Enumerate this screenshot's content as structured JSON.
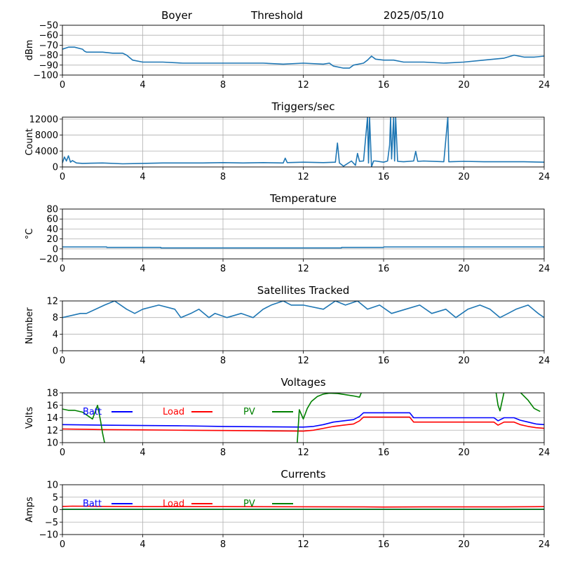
{
  "header": {
    "station": "Boyer",
    "mode": "Threshold",
    "date": "2025/05/10"
  },
  "colors": {
    "default_line": "#1f77b4",
    "batt": "#0000ff",
    "load": "#ff0000",
    "pv": "#008000",
    "grid": "#b0b0b0"
  },
  "chart_data": [
    {
      "type": "line",
      "title": "",
      "ylabel": "dBm",
      "xlim": [
        0,
        24
      ],
      "ylim": [
        -100,
        -50
      ],
      "xticks": [
        "0",
        "4",
        "8",
        "12",
        "16",
        "20",
        "24"
      ],
      "yticks": [
        "−100",
        "−90",
        "−80",
        "−70",
        "−60",
        "−50"
      ],
      "grid": true,
      "series": [
        {
          "color": "#1f77b4",
          "x": [
            0,
            0.3,
            0.6,
            1.0,
            1.1,
            1.2,
            2.0,
            2.5,
            3.0,
            3.2,
            3.5,
            4.0,
            4.5,
            5.0,
            6.0,
            7.0,
            8.0,
            9.0,
            10.0,
            11.0,
            12.0,
            13.0,
            13.3,
            13.5,
            14.0,
            14.3,
            14.5,
            15.0,
            15.2,
            15.4,
            15.6,
            16.0,
            16.5,
            17.0,
            18.0,
            19.0,
            20.0,
            21.0,
            22.0,
            22.5,
            23.0,
            23.5,
            24.0
          ],
          "y": [
            -74,
            -72,
            -72,
            -74,
            -76,
            -77,
            -77,
            -78,
            -78,
            -80,
            -85,
            -87,
            -87,
            -87,
            -88,
            -88,
            -88,
            -88,
            -88,
            -89,
            -88,
            -89,
            -88,
            -91,
            -93,
            -93,
            -90,
            -88,
            -85,
            -81,
            -84,
            -85,
            -85,
            -87,
            -87,
            -88,
            -87,
            -85,
            -83,
            -80,
            -82,
            -82,
            -81
          ]
        }
      ]
    },
    {
      "type": "line",
      "title": "Triggers/sec",
      "ylabel": "Count",
      "xlim": [
        0,
        24
      ],
      "ylim": [
        0,
        12500
      ],
      "xticks": [
        "0",
        "4",
        "8",
        "12",
        "16",
        "20",
        "24"
      ],
      "yticks": [
        "0",
        "4000",
        "8000",
        "12000"
      ],
      "grid": true,
      "series": [
        {
          "color": "#1f77b4",
          "x": [
            0,
            0.1,
            0.2,
            0.3,
            0.4,
            0.5,
            0.7,
            1.0,
            2.0,
            3.0,
            4.0,
            5.0,
            6.0,
            7.0,
            8.0,
            9.0,
            10.0,
            11.0,
            11.1,
            11.2,
            12.0,
            13.0,
            13.6,
            13.7,
            13.8,
            14.0,
            14.4,
            14.6,
            14.7,
            14.8,
            15.0,
            15.2,
            15.25,
            15.3,
            15.4,
            15.5,
            15.6,
            16.0,
            16.2,
            16.3,
            16.35,
            16.4,
            16.5,
            16.55,
            16.6,
            16.7,
            17.0,
            17.5,
            17.6,
            17.7,
            18.0,
            19.0,
            19.2,
            19.25,
            19.3,
            20.0,
            21.0,
            22.0,
            23.0,
            24.0
          ],
          "y": [
            1000,
            2500,
            1500,
            2800,
            1200,
            1600,
            1000,
            900,
            1000,
            800,
            900,
            1000,
            1000,
            1000,
            1100,
            1000,
            1100,
            1000,
            2200,
            1100,
            1200,
            1100,
            1200,
            6000,
            1000,
            200,
            1500,
            400,
            3400,
            1400,
            1500,
            12500,
            1000,
            12500,
            0,
            1500,
            1500,
            1200,
            1500,
            5500,
            12500,
            2000,
            12500,
            1500,
            12500,
            1400,
            1300,
            1500,
            3900,
            1400,
            1500,
            1300,
            12500,
            1300,
            1300,
            1400,
            1300,
            1300,
            1300,
            1200
          ]
        }
      ]
    },
    {
      "type": "line",
      "title": "Temperature",
      "ylabel": "°C",
      "xlim": [
        0,
        24
      ],
      "ylim": [
        -20,
        80
      ],
      "xticks": [
        "0",
        "4",
        "8",
        "12",
        "16",
        "20",
        "24"
      ],
      "yticks": [
        "−20",
        "0",
        "20",
        "40",
        "60",
        "80"
      ],
      "grid": true,
      "series": [
        {
          "color": "#1f77b4",
          "x": [
            0,
            2.2,
            2.21,
            4.9,
            4.91,
            13.9,
            13.91,
            16.0,
            16.01,
            24.0
          ],
          "y": [
            4,
            4,
            3,
            3,
            2,
            2,
            3,
            3,
            4,
            4
          ]
        }
      ]
    },
    {
      "type": "line",
      "title": "Satellites Tracked",
      "ylabel": "Number",
      "xlim": [
        0,
        24
      ],
      "ylim": [
        0,
        12
      ],
      "xticks": [
        "0",
        "4",
        "8",
        "12",
        "16",
        "20",
        "24"
      ],
      "yticks": [
        "0",
        "4",
        "8",
        "12"
      ],
      "grid": true,
      "series": [
        {
          "color": "#1f77b4",
          "x": [
            0,
            0.9,
            1.2,
            2.1,
            2.6,
            3.2,
            3.6,
            4.0,
            4.8,
            5.6,
            5.9,
            6.4,
            6.8,
            7.3,
            7.6,
            8.2,
            8.9,
            9.5,
            10.0,
            10.4,
            11.0,
            11.4,
            12.0,
            13.0,
            13.6,
            14.1,
            14.7,
            15.2,
            15.8,
            16.4,
            17.1,
            17.8,
            18.4,
            19.1,
            19.6,
            20.2,
            20.8,
            21.3,
            21.8,
            22.2,
            22.6,
            23.2,
            23.7,
            24.0
          ],
          "y": [
            8,
            9,
            9,
            11,
            12,
            10,
            9,
            10,
            11,
            10,
            8,
            9,
            10,
            8,
            9,
            8,
            9,
            8,
            10,
            11,
            12,
            11,
            11,
            10,
            12,
            11,
            12,
            10,
            11,
            9,
            10,
            11,
            9,
            10,
            8,
            10,
            11,
            10,
            8,
            9,
            10,
            11,
            9,
            8
          ]
        }
      ]
    },
    {
      "type": "line",
      "title": "Voltages",
      "ylabel": "Volts",
      "xlim": [
        0,
        24
      ],
      "ylim": [
        10,
        18
      ],
      "xticks": [
        "0",
        "4",
        "8",
        "12",
        "16",
        "20",
        "24"
      ],
      "yticks": [
        "10",
        "12",
        "14",
        "16",
        "18"
      ],
      "grid": true,
      "legend": "top-left",
      "series": [
        {
          "name": "Batt",
          "color": "#0000ff",
          "x": [
            0,
            2,
            4,
            6,
            8,
            10,
            12,
            12.5,
            13.0,
            13.5,
            14.0,
            14.5,
            14.8,
            15.0,
            17.3,
            17.5,
            21.5,
            21.7,
            22.0,
            22.5,
            22.8,
            23.2,
            23.6,
            24.0
          ],
          "y": [
            12.9,
            12.8,
            12.75,
            12.7,
            12.6,
            12.55,
            12.5,
            12.6,
            12.9,
            13.3,
            13.5,
            13.7,
            14.2,
            14.8,
            14.8,
            14.0,
            14.0,
            13.5,
            14.0,
            14.0,
            13.6,
            13.3,
            13.0,
            12.9
          ]
        },
        {
          "name": "Load",
          "color": "#ff0000",
          "x": [
            0,
            2,
            4,
            6,
            8,
            10,
            12,
            12.5,
            13.0,
            13.5,
            14.0,
            14.5,
            14.8,
            15.0,
            17.3,
            17.5,
            21.5,
            21.7,
            22.0,
            22.5,
            22.8,
            23.2,
            23.6,
            24.0
          ],
          "y": [
            12.2,
            12.1,
            12.05,
            12.0,
            11.95,
            11.9,
            11.85,
            12.0,
            12.3,
            12.6,
            12.8,
            13.0,
            13.5,
            14.1,
            14.1,
            13.3,
            13.3,
            12.8,
            13.3,
            13.3,
            12.9,
            12.6,
            12.4,
            12.3
          ]
        },
        {
          "name": "PV",
          "color": "#008000",
          "x": [
            0,
            0.3,
            0.6,
            1.0,
            1.5,
            1.75,
            1.9,
            2.0,
            2.1,
            2.2,
            11.65,
            11.7,
            11.8,
            12.0,
            12.2,
            12.4,
            12.7,
            13.0,
            13.3,
            13.7,
            14.0,
            14.5,
            14.8,
            14.9,
            21.6,
            21.7,
            21.8,
            22.0,
            22.8,
            23.2,
            23.5,
            23.8
          ],
          "y": [
            15.4,
            15.2,
            15.2,
            14.9,
            13.8,
            16.0,
            13.5,
            11.5,
            10.0,
            9.0,
            9.0,
            10.0,
            15.3,
            13.8,
            15.5,
            16.6,
            17.4,
            17.8,
            17.95,
            17.9,
            17.75,
            17.5,
            17.3,
            18.1,
            18.1,
            16.0,
            15.1,
            18.1,
            18.1,
            16.8,
            15.5,
            15.0
          ]
        }
      ]
    },
    {
      "type": "line",
      "title": "Currents",
      "ylabel": "Amps",
      "xlim": [
        0,
        24
      ],
      "ylim": [
        -10,
        10
      ],
      "xticks": [
        "0",
        "4",
        "8",
        "12",
        "16",
        "20",
        "24"
      ],
      "yticks": [
        "−10",
        "−5",
        "0",
        "5",
        "10"
      ],
      "grid": true,
      "legend": "top-left",
      "series": [
        {
          "name": "Batt",
          "color": "#0000ff",
          "x": [
            0,
            4,
            8,
            12,
            16,
            20,
            24
          ],
          "y": [
            0.1,
            0.1,
            0.1,
            0.1,
            0.1,
            0.1,
            0.1
          ]
        },
        {
          "name": "Load",
          "color": "#ff0000",
          "x": [
            0,
            0.5,
            2,
            4,
            8,
            12,
            15,
            16,
            18,
            20,
            22,
            24
          ],
          "y": [
            1.3,
            1.4,
            1.3,
            1.2,
            1.2,
            1.15,
            1.1,
            1.05,
            1.1,
            1.1,
            1.1,
            1.2
          ]
        },
        {
          "name": "PV",
          "color": "#008000",
          "x": [
            0,
            4,
            8,
            12,
            16,
            20,
            24
          ],
          "y": [
            0.1,
            0.1,
            0.1,
            0.1,
            0.1,
            0.1,
            0.1
          ]
        }
      ]
    }
  ]
}
